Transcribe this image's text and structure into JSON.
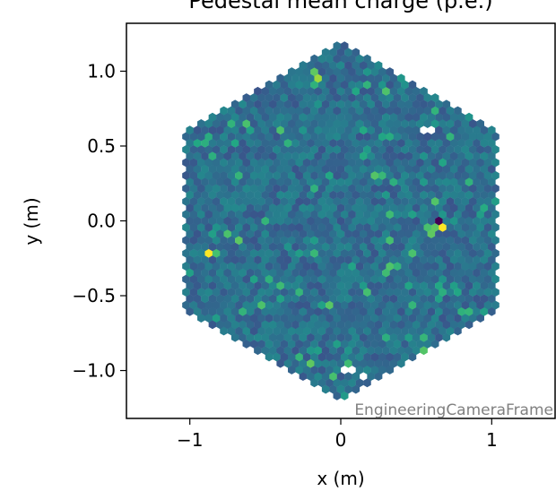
{
  "chart_data": {
    "type": "heatmap",
    "title": "Pedestal mean charge (p.e.)",
    "xlabel": "x  (m)",
    "ylabel": "y  (m)",
    "xlim": [
      -1.42,
      1.42
    ],
    "ylim": [
      -1.32,
      1.32
    ],
    "x_ticks": [
      -1,
      0,
      1
    ],
    "x_tick_labels": [
      "−1",
      "0",
      "1"
    ],
    "y_ticks": [
      1.0,
      0.5,
      0.0,
      -0.5,
      -1.0
    ],
    "y_tick_labels": [
      "1.0",
      "0.5",
      "0.0",
      "−0.5",
      "−1.0"
    ],
    "camera_frame": "EngineeringCameraFrame",
    "colormap": "viridis",
    "camera_shape": "hexagon",
    "camera_radius_m": 1.2,
    "pixel_pitch_m": 0.05,
    "grid": false,
    "hot_spots": [
      {
        "x": -0.16,
        "y": 1.0,
        "value": 0.75
      },
      {
        "x": -0.14,
        "y": 0.95,
        "value": 0.85
      },
      {
        "x": 0.63,
        "y": 0.01,
        "value": 0.0
      },
      {
        "x": 0.66,
        "y": -0.04,
        "value": 1.0
      },
      {
        "x": 0.62,
        "y": -0.07,
        "value": 0.75
      },
      {
        "x": -0.88,
        "y": -0.23,
        "value": 1.0
      },
      {
        "x": -0.82,
        "y": -0.24,
        "value": 0.7
      },
      {
        "x": -0.19,
        "y": -0.97,
        "value": 0.75
      },
      {
        "x": 0.74,
        "y": 0.55,
        "value": 0.65
      },
      {
        "x": 0.37,
        "y": -0.3,
        "value": 0.65
      }
    ],
    "missing_pixels": [
      {
        "x": 0.55,
        "y": 0.62
      },
      {
        "x": 0.58,
        "y": 0.6
      },
      {
        "x": 0.05,
        "y": -0.99
      },
      {
        "x": 0.13,
        "y": -1.04
      }
    ]
  }
}
